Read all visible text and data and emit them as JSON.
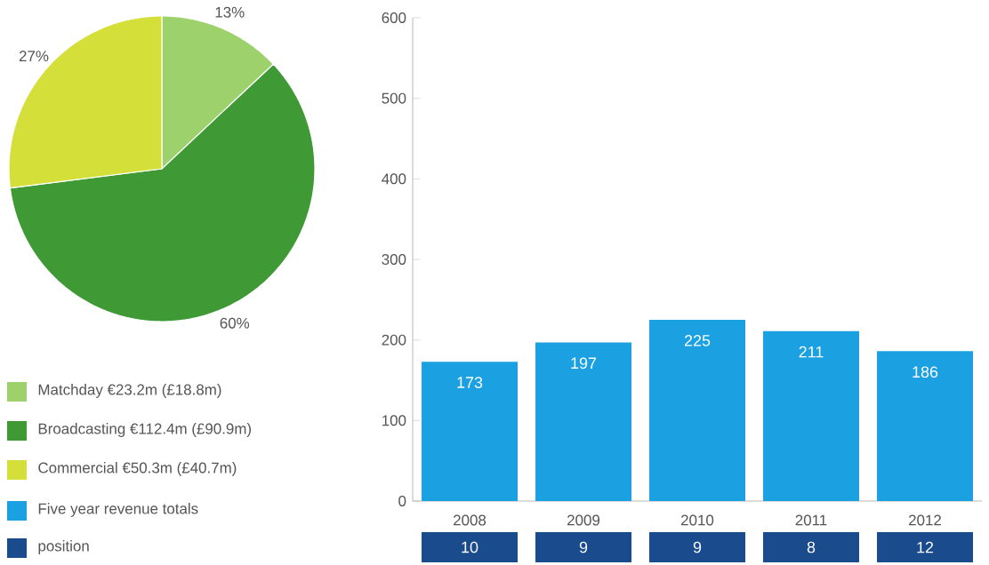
{
  "chart_data": [
    {
      "type": "pie",
      "categories": [
        "Matchday €23.2m (£18.8m)",
        "Broadcasting €112.4m (£90.9m)",
        "Commercial €50.3m (£40.7m)"
      ],
      "values": [
        13,
        60,
        27
      ],
      "colors": [
        "#9dd16b",
        "#3f9a36",
        "#d4df3a"
      ],
      "value_labels": [
        "13%",
        "60%",
        "27%"
      ],
      "legend": "bottom"
    },
    {
      "type": "bar",
      "categories": [
        "2008",
        "2009",
        "2010",
        "2011",
        "2012"
      ],
      "series": [
        {
          "name": "Five year revenue totals",
          "color": "#1ba1e2",
          "values": [
            173,
            197,
            225,
            211,
            186
          ]
        }
      ],
      "ylim": [
        0,
        600
      ],
      "yticks": [
        0,
        100,
        200,
        300,
        400,
        500,
        600
      ],
      "data_labels": true,
      "grid": false,
      "legend": "left"
    },
    {
      "type": "other",
      "series": [
        {
          "name": "position",
          "color": "#1a4b8c",
          "values": [
            10,
            9,
            9,
            8,
            12
          ]
        }
      ],
      "data_labels": true,
      "legend": "left"
    }
  ]
}
